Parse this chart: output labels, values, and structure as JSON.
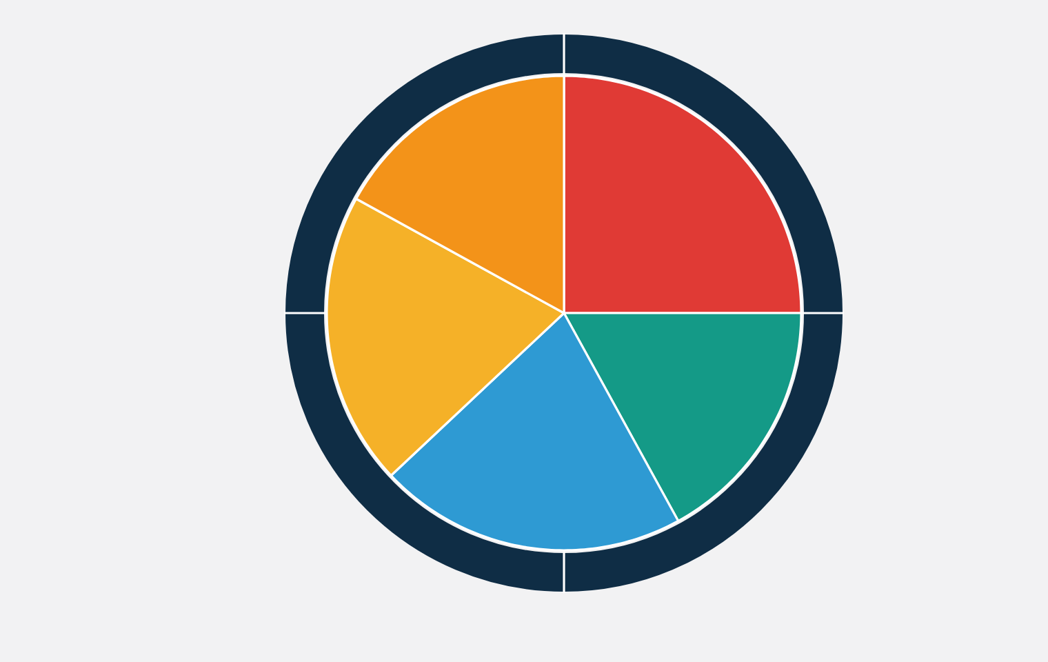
{
  "chart_data": {
    "type": "pie",
    "categories": [
      null,
      null,
      null,
      null,
      null
    ],
    "values": [
      25,
      17,
      21,
      20,
      17
    ],
    "colors": [
      "#e03a35",
      "#149a87",
      "#2e9ad3",
      "#f5b128",
      "#f39319"
    ]
  }
}
